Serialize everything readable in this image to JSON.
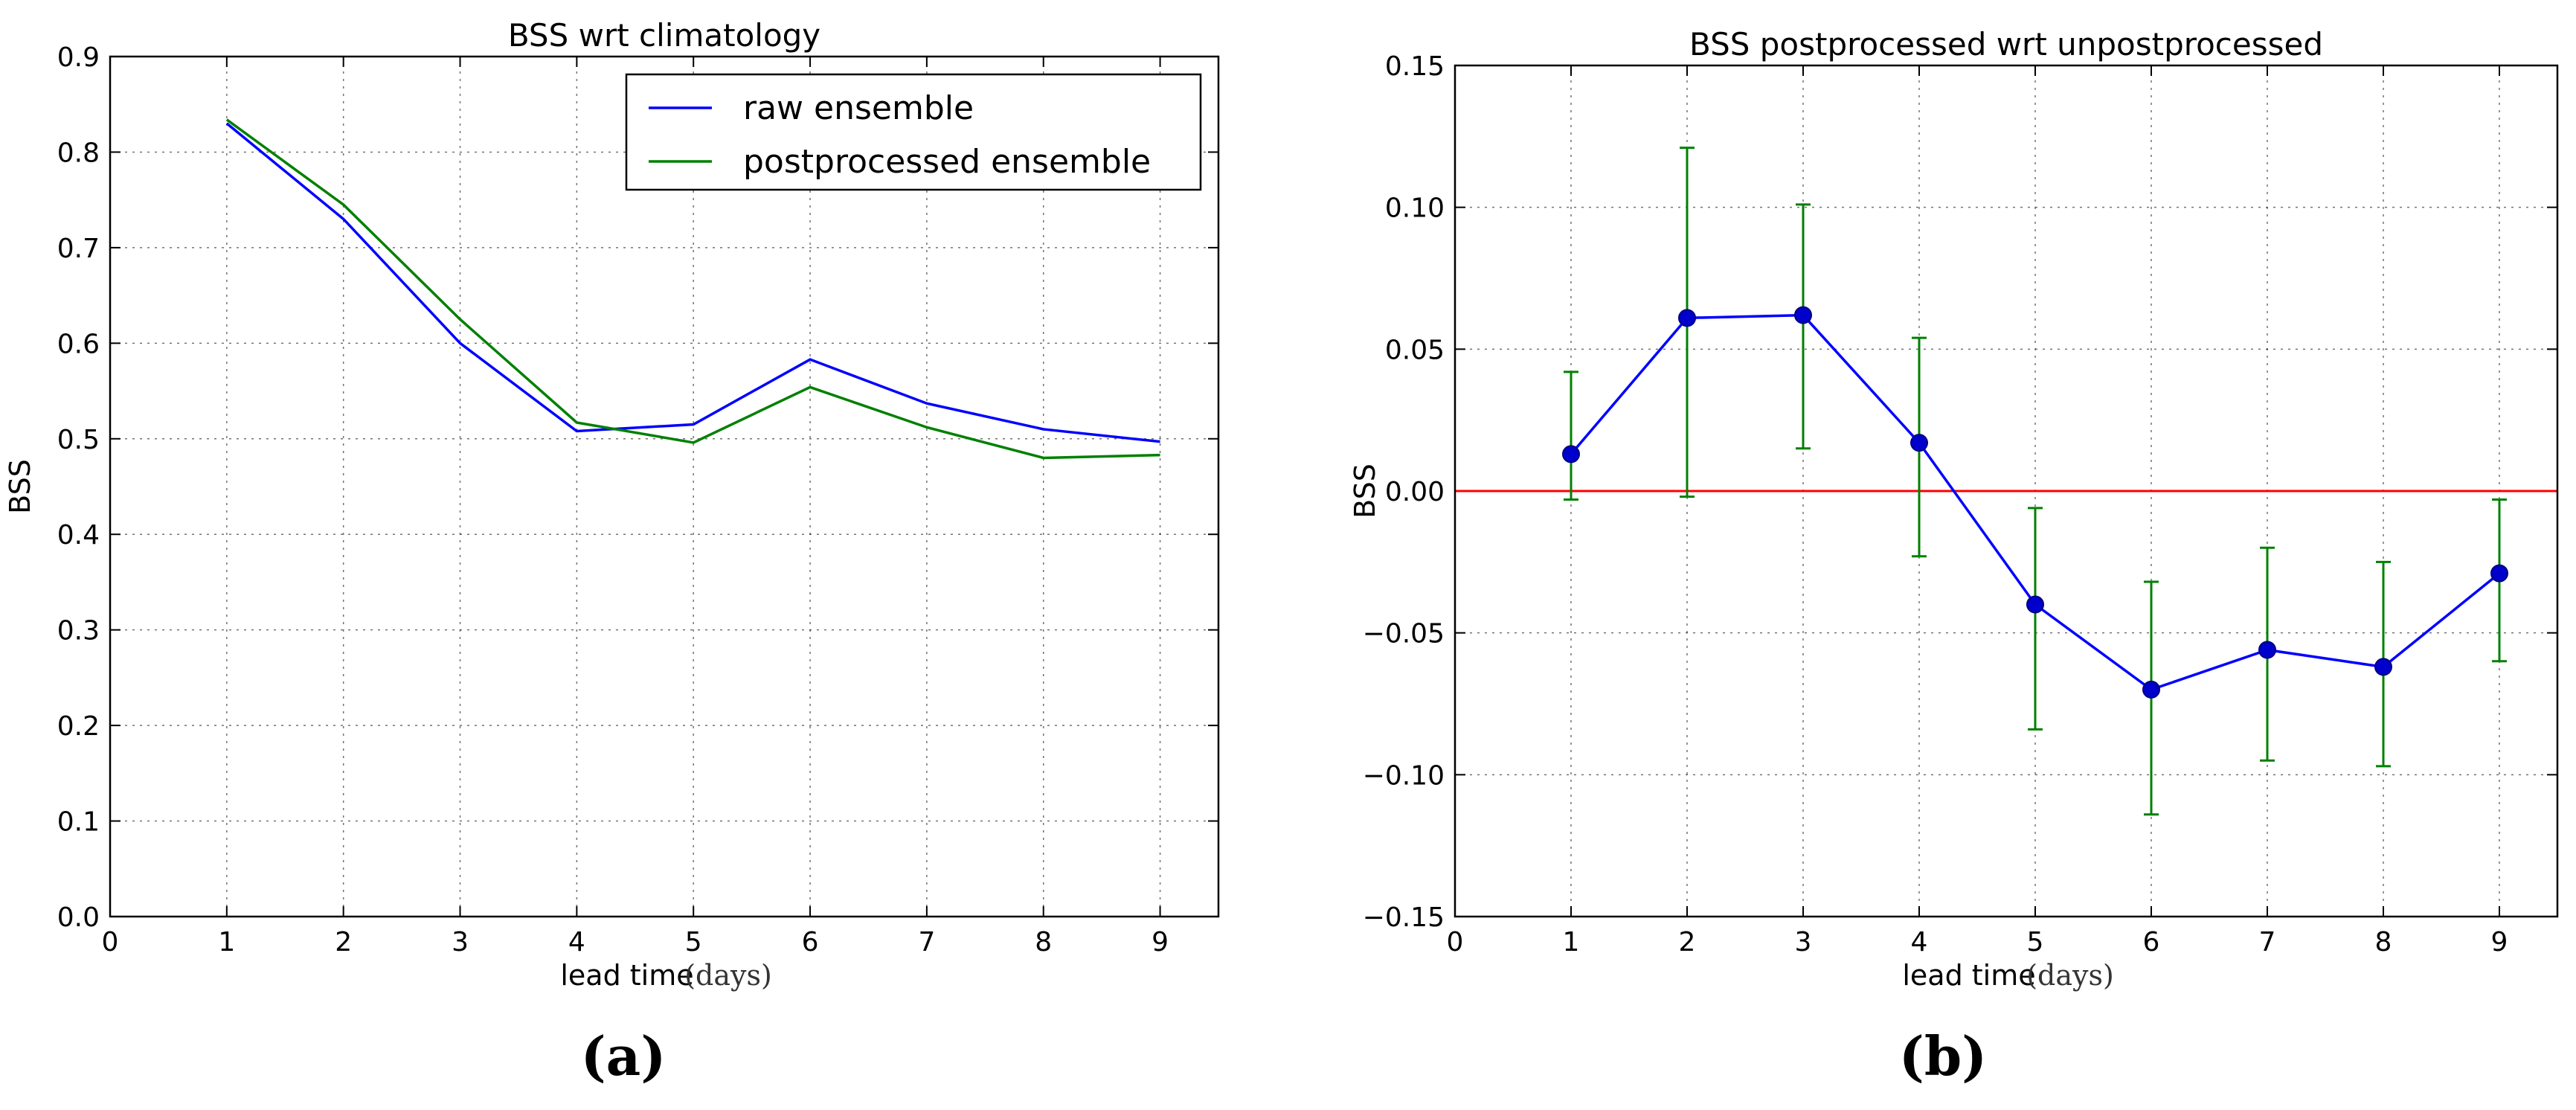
{
  "chart_data": [
    {
      "type": "line",
      "title": "BSS wrt climatology",
      "xlabel": "lead time",
      "xlabel_unit": "(days)",
      "ylabel": "BSS",
      "panel_label": "(a)",
      "xlim": [
        0,
        9.5
      ],
      "ylim": [
        0.0,
        0.9
      ],
      "xticks": [
        "0",
        "1",
        "2",
        "3",
        "4",
        "5",
        "6",
        "7",
        "8",
        "9"
      ],
      "yticks": [
        "0.0",
        "0.1",
        "0.2",
        "0.3",
        "0.4",
        "0.5",
        "0.6",
        "0.7",
        "0.8",
        "0.9"
      ],
      "grid": true,
      "legend_position": "top-right",
      "x": [
        1,
        2,
        3,
        4,
        5,
        6,
        7,
        8,
        9
      ],
      "series": [
        {
          "name": "raw ensemble",
          "color": "#0000ff",
          "values": [
            0.83,
            0.73,
            0.6,
            0.508,
            0.515,
            0.583,
            0.537,
            0.51,
            0.497
          ]
        },
        {
          "name": "postprocessed ensemble",
          "color": "#008000",
          "values": [
            0.834,
            0.745,
            0.625,
            0.517,
            0.496,
            0.554,
            0.512,
            0.48,
            0.483
          ]
        }
      ]
    },
    {
      "type": "scatter",
      "title": "BSS postprocessed wrt unpostprocessed",
      "xlabel": "lead time",
      "xlabel_unit": "(days)",
      "ylabel": "BSS",
      "panel_label": "(b)",
      "xlim": [
        0,
        9.5
      ],
      "ylim": [
        -0.15,
        0.15
      ],
      "xticks": [
        "0",
        "1",
        "2",
        "3",
        "4",
        "5",
        "6",
        "7",
        "8",
        "9"
      ],
      "yticks": [
        "−0.15",
        "−0.10",
        "−0.05",
        "0.00",
        "0.05",
        "0.10",
        "0.15"
      ],
      "grid": true,
      "reference_line": {
        "y": 0.0,
        "color": "#ff0000"
      },
      "x": [
        1,
        2,
        3,
        4,
        5,
        6,
        7,
        8,
        9
      ],
      "series": [
        {
          "name": "BSS",
          "color": "#0000ff",
          "errorbar_color": "#008000",
          "values": [
            0.013,
            0.061,
            0.062,
            0.017,
            -0.04,
            -0.07,
            -0.056,
            -0.062,
            -0.029
          ],
          "lower": [
            -0.003,
            -0.002,
            0.015,
            -0.023,
            -0.084,
            -0.114,
            -0.095,
            -0.097,
            -0.06
          ],
          "upper": [
            0.042,
            0.121,
            0.101,
            0.054,
            -0.006,
            -0.032,
            -0.02,
            -0.025,
            -0.003
          ]
        }
      ]
    }
  ]
}
